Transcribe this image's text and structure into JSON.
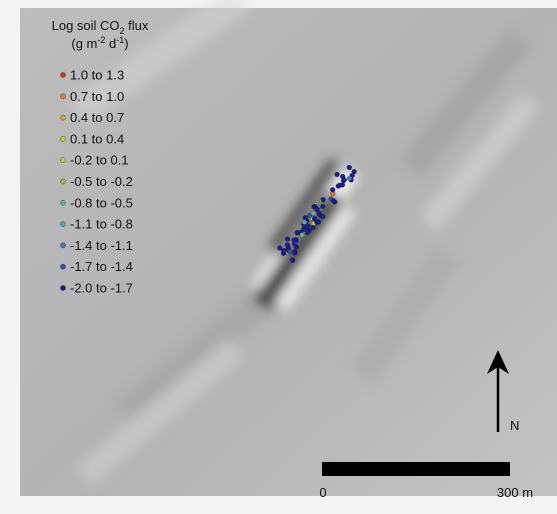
{
  "legend": {
    "title": {
      "text": "Log soil CO",
      "sub": "2",
      "after": " flux"
    },
    "units": {
      "open": "(g m",
      "exp1": "-2",
      "mid": " d",
      "exp2": "-1",
      "close": ")"
    },
    "items": [
      {
        "label": "1.0 to 1.3",
        "color": "#d7301f"
      },
      {
        "label": "0.7 to 1.0",
        "color": "#e8772a"
      },
      {
        "label": "0.4 to 0.7",
        "color": "#d9a32a"
      },
      {
        "label": "0.1 to 0.4",
        "color": "#c8c82c"
      },
      {
        "label": "-0.2 to 0.1",
        "color": "#b3d33c"
      },
      {
        "label": "-0.5 to -0.2",
        "color": "#88c440"
      },
      {
        "label": "-0.8 to -0.5",
        "color": "#5cb88c"
      },
      {
        "label": "-1.1 to -0.8",
        "color": "#48a6c2"
      },
      {
        "label": "-1.4 to -1.1",
        "color": "#3a80c0"
      },
      {
        "label": "-1.7 to -1.4",
        "color": "#3050b0"
      },
      {
        "label": "-2.0 to -1.7",
        "color": "#1c1c8c"
      }
    ]
  },
  "scale_bar": {
    "start": "0",
    "end": "300 m"
  },
  "north_arrow": {
    "label": "N"
  }
}
